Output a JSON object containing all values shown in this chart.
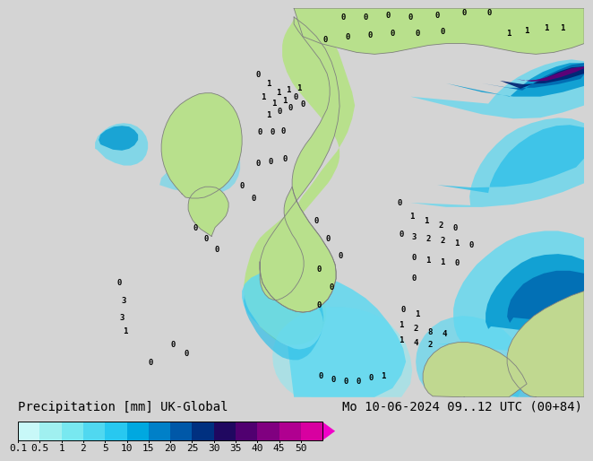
{
  "title_left": "Precipitation [mm] UK-Global",
  "title_right": "Mo 10-06-2024 09..12 UTC (00+84)",
  "colorbar_labels": [
    "0.1",
    "0.5",
    "1",
    "2",
    "5",
    "10",
    "15",
    "20",
    "25",
    "30",
    "35",
    "40",
    "45",
    "50"
  ],
  "colorbar_colors": [
    "#c8f8f8",
    "#a0f0f0",
    "#78e8f0",
    "#50d8f0",
    "#28c8f0",
    "#00a8e0",
    "#0080c8",
    "#0058a8",
    "#003080",
    "#200860",
    "#500070",
    "#800080",
    "#b00090",
    "#d800a0",
    "#f000c8"
  ],
  "sea_color": "#d4d4d4",
  "land_color": "#b8e08c",
  "bg_color": "#d4d4d4",
  "text_color": "#000000",
  "font_family": "monospace",
  "font_size_title": 10,
  "font_size_tick": 8,
  "precip_colors": {
    "p01": "#c0f0f0",
    "p05": "#90e8f0",
    "p1": "#60d8f0",
    "p2": "#30c0e8",
    "p5": "#0098d0",
    "p10": "#0068b0",
    "p15": "#004090",
    "p20": "#002070",
    "p25": "#300060",
    "p30": "#600078",
    "p35": "#900088",
    "p40": "#c00098",
    "p45": "#e000a8",
    "p50": "#f000c0"
  }
}
